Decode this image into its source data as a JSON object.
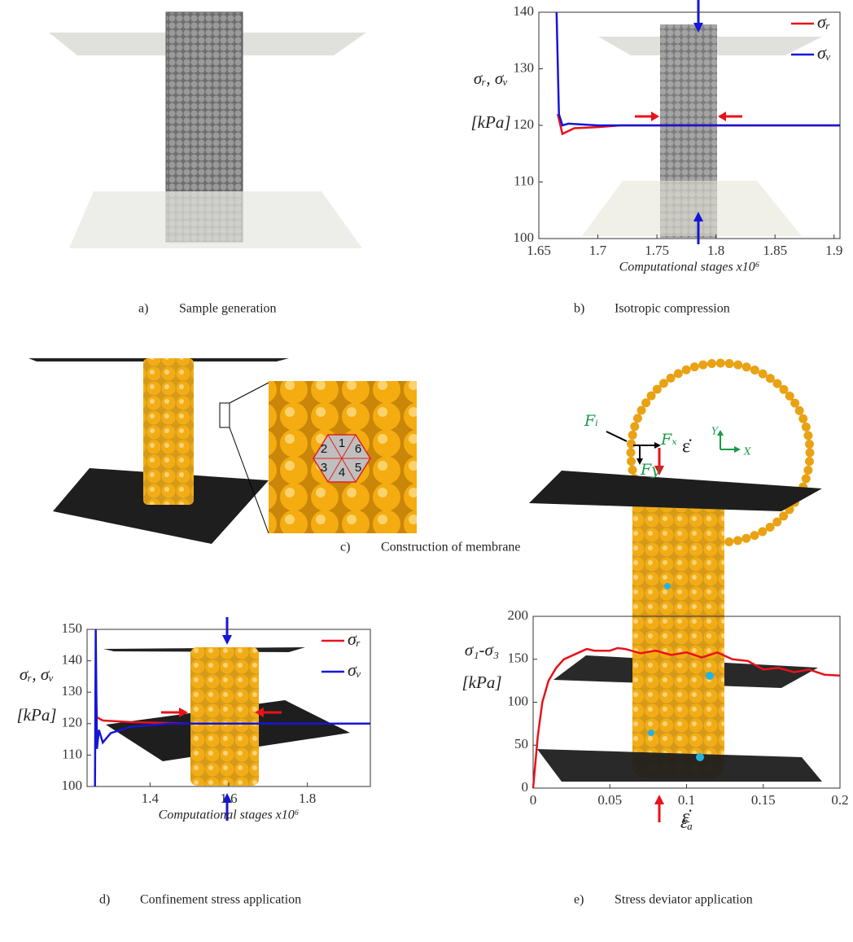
{
  "chart_data": [
    {
      "type": "line",
      "xlabel": "Computational stages x10⁶",
      "ylabel": [
        "σᵣ, σᵥ",
        "[kPa]"
      ],
      "xlim": [
        1.65,
        1.905
      ],
      "xticks": [
        1.65,
        1.7,
        1.75,
        1.8,
        1.85,
        1.9
      ],
      "ylim": [
        100,
        140
      ],
      "yticks": [
        100,
        110,
        120,
        130,
        140
      ],
      "legend": "upper right",
      "series": [
        {
          "name": "σᵣ",
          "color": "#e8121a",
          "x": [
            1.666,
            1.67,
            1.68,
            1.7,
            1.72,
            1.8,
            1.905
          ],
          "values": [
            122,
            118.5,
            119.5,
            119.7,
            120,
            120,
            120
          ]
        },
        {
          "name": "σᵥ",
          "color": "#1515d8",
          "x": [
            1.665,
            1.667,
            1.67,
            1.675,
            1.7,
            1.8,
            1.905
          ],
          "values": [
            140,
            122,
            120,
            120.3,
            120,
            120,
            120
          ]
        }
      ]
    },
    {
      "type": "line",
      "xlabel": "Computational stages x10⁶",
      "ylabel": [
        "σᵣ, σᵥ",
        "[kPa]"
      ],
      "xlim": [
        1.24,
        1.96
      ],
      "xticks": [
        1.4,
        1.6,
        1.8
      ],
      "ylim": [
        100,
        150
      ],
      "yticks": [
        100,
        110,
        120,
        130,
        140,
        150
      ],
      "legend": "upper right",
      "series": [
        {
          "name": "σᵣ",
          "color": "#e8121a",
          "x": [
            1.262,
            1.265,
            1.28,
            1.35,
            1.5,
            1.96
          ],
          "values": [
            130,
            122,
            121,
            120.5,
            120,
            120
          ]
        },
        {
          "name": "σᵥ",
          "color": "#1515d8",
          "x": [
            1.26,
            1.262,
            1.265,
            1.27,
            1.28,
            1.3,
            1.35,
            1.45,
            1.96
          ],
          "values": [
            100,
            150,
            112,
            118,
            114,
            117,
            119,
            120,
            120
          ]
        }
      ]
    },
    {
      "type": "line",
      "xlabel": "εₐ",
      "ylabel": [
        "σ₁-σ₃",
        "[kPa]"
      ],
      "xlim": [
        0,
        0.2
      ],
      "xticks": [
        0,
        0.05,
        0.1,
        0.15,
        0.2
      ],
      "ylim": [
        0,
        200
      ],
      "yticks": [
        0,
        50,
        100,
        150,
        200
      ],
      "annotations": [
        "ε̇",
        "ε̇"
      ],
      "series": [
        {
          "color": "#e8121a",
          "x": [
            0,
            0.003,
            0.006,
            0.01,
            0.015,
            0.02,
            0.03,
            0.035,
            0.04,
            0.05,
            0.055,
            0.06,
            0.07,
            0.08,
            0.09,
            0.1,
            0.11,
            0.12,
            0.13,
            0.14,
            0.15,
            0.16,
            0.17,
            0.18,
            0.19,
            0.2
          ],
          "values": [
            0,
            60,
            100,
            125,
            140,
            150,
            158,
            162,
            160,
            160,
            163,
            162,
            157,
            160,
            155,
            158,
            152,
            158,
            150,
            148,
            138,
            140,
            135,
            138,
            132,
            131
          ]
        }
      ]
    }
  ],
  "captions": [
    {
      "label": "a)",
      "text": "Sample generation"
    },
    {
      "label": "b)",
      "text": "Isotropic compression"
    },
    {
      "label": "c)",
      "text": "Construction of membrane"
    },
    {
      "label": "d)",
      "text": "Confinement stress application"
    },
    {
      "label": "e)",
      "text": "Stress deviator application"
    }
  ],
  "membrane_labels": {
    "cells": [
      "1",
      "2",
      "3",
      "4",
      "5",
      "6"
    ],
    "forces": [
      "Fᵢ",
      "Fₓ",
      "Fy"
    ],
    "axes": [
      "Y",
      "X"
    ]
  }
}
